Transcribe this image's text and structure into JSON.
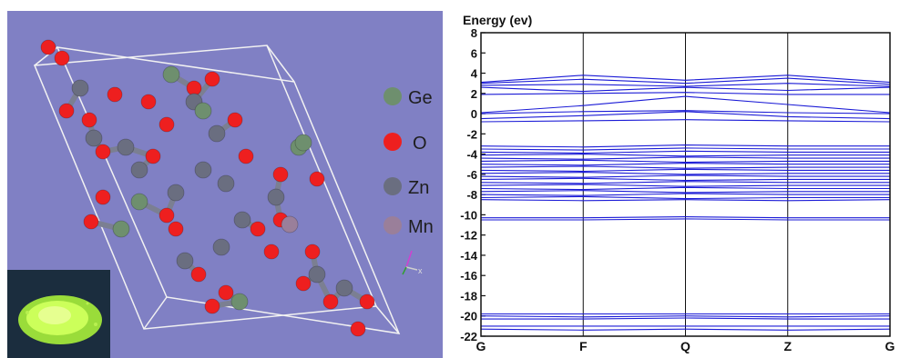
{
  "crystal": {
    "background": "#8080c4",
    "legend": [
      {
        "label": "Ge",
        "color": "#6e8f6e"
      },
      {
        "label": "O",
        "color": "#ee1f1f"
      },
      {
        "label": "Zn",
        "color": "#6a6e80"
      },
      {
        "label": "Mn",
        "color": "#9a7f9a"
      }
    ],
    "axis_triad_label": "x",
    "inset_photo": "green-luminescent-powder"
  },
  "chart_data": {
    "type": "line",
    "title": "",
    "ylabel": "Energy (ev)",
    "xlabel": "",
    "ylim": [
      -22,
      8
    ],
    "yticks": [
      8,
      6,
      4,
      2,
      0,
      -2,
      -4,
      -6,
      -8,
      -10,
      -12,
      -14,
      -16,
      -18,
      -20,
      -22
    ],
    "kpoints": [
      "G",
      "F",
      "Q",
      "Z",
      "G"
    ],
    "line_color": "#1a1ad6",
    "grid": false,
    "series": [
      {
        "name": "",
        "values": [
          3.1,
          3.8,
          3.3,
          3.8,
          3.1
        ]
      },
      {
        "name": "",
        "values": [
          3.0,
          3.4,
          3.0,
          3.5,
          2.9
        ]
      },
      {
        "name": "",
        "values": [
          2.8,
          2.9,
          2.7,
          3.0,
          2.7
        ]
      },
      {
        "name": "",
        "values": [
          2.6,
          2.2,
          2.6,
          2.3,
          2.6
        ]
      },
      {
        "name": "",
        "values": [
          1.9,
          2.0,
          2.1,
          1.9,
          1.9
        ]
      },
      {
        "name": "",
        "values": [
          0.1,
          0.8,
          1.7,
          0.9,
          0.1
        ]
      },
      {
        "name": "",
        "values": [
          0.0,
          0.2,
          0.3,
          0.1,
          0.0
        ]
      },
      {
        "name": "",
        "values": [
          -0.5,
          -0.2,
          0.2,
          -0.3,
          -0.5
        ]
      },
      {
        "name": "",
        "values": [
          -0.8,
          -0.7,
          -0.6,
          -0.7,
          -0.8
        ]
      },
      {
        "name": "",
        "values": [
          -3.2,
          -3.3,
          -3.1,
          -3.2,
          -3.2
        ]
      },
      {
        "name": "",
        "values": [
          -3.5,
          -3.6,
          -3.4,
          -3.5,
          -3.5
        ]
      },
      {
        "name": "",
        "values": [
          -3.8,
          -3.9,
          -3.7,
          -3.8,
          -3.8
        ]
      },
      {
        "name": "",
        "values": [
          -4.1,
          -4.0,
          -4.2,
          -4.1,
          -4.1
        ]
      },
      {
        "name": "",
        "values": [
          -4.4,
          -4.5,
          -4.3,
          -4.4,
          -4.4
        ]
      },
      {
        "name": "",
        "values": [
          -4.7,
          -4.6,
          -4.8,
          -4.7,
          -4.7
        ]
      },
      {
        "name": "",
        "values": [
          -5.0,
          -5.1,
          -4.9,
          -5.0,
          -5.0
        ]
      },
      {
        "name": "",
        "values": [
          -5.3,
          -5.2,
          -5.4,
          -5.3,
          -5.3
        ]
      },
      {
        "name": "",
        "values": [
          -5.6,
          -5.7,
          -5.5,
          -5.6,
          -5.6
        ]
      },
      {
        "name": "",
        "values": [
          -5.9,
          -5.8,
          -6.0,
          -5.9,
          -5.9
        ]
      },
      {
        "name": "",
        "values": [
          -6.2,
          -6.3,
          -6.1,
          -6.2,
          -6.2
        ]
      },
      {
        "name": "",
        "values": [
          -6.5,
          -6.4,
          -6.6,
          -6.5,
          -6.5
        ]
      },
      {
        "name": "",
        "values": [
          -6.8,
          -6.9,
          -6.7,
          -6.8,
          -6.8
        ]
      },
      {
        "name": "",
        "values": [
          -7.1,
          -7.0,
          -7.2,
          -7.1,
          -7.1
        ]
      },
      {
        "name": "",
        "values": [
          -7.4,
          -7.5,
          -7.3,
          -7.4,
          -7.4
        ]
      },
      {
        "name": "",
        "values": [
          -7.7,
          -7.6,
          -7.8,
          -7.7,
          -7.7
        ]
      },
      {
        "name": "",
        "values": [
          -8.0,
          -8.1,
          -7.9,
          -8.0,
          -8.0
        ]
      },
      {
        "name": "",
        "values": [
          -8.3,
          -8.2,
          -8.4,
          -8.3,
          -8.3
        ]
      },
      {
        "name": "",
        "values": [
          -8.5,
          -8.6,
          -8.5,
          -8.6,
          -8.5
        ]
      },
      {
        "name": "",
        "values": [
          -10.3,
          -10.3,
          -10.2,
          -10.3,
          -10.3
        ]
      },
      {
        "name": "",
        "values": [
          -10.5,
          -10.5,
          -10.4,
          -10.5,
          -10.5
        ]
      },
      {
        "name": "",
        "values": [
          -19.8,
          -19.8,
          -19.8,
          -19.8,
          -19.8
        ]
      },
      {
        "name": "",
        "values": [
          -20.0,
          -20.1,
          -20.0,
          -20.1,
          -20.0
        ]
      },
      {
        "name": "",
        "values": [
          -20.3,
          -20.3,
          -20.2,
          -20.3,
          -20.3
        ]
      },
      {
        "name": "",
        "values": [
          -21.0,
          -21.0,
          -21.0,
          -21.0,
          -21.0
        ]
      },
      {
        "name": "",
        "values": [
          -21.3,
          -21.4,
          -21.3,
          -21.4,
          -21.3
        ]
      }
    ]
  }
}
